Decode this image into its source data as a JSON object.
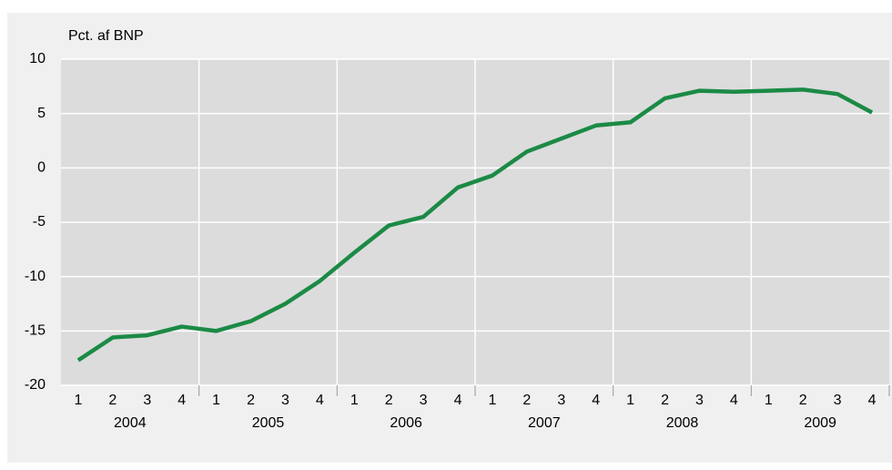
{
  "chart_data": {
    "type": "line",
    "y_label": "Pct. af BNP",
    "categories": [
      "1",
      "2",
      "3",
      "4",
      "1",
      "2",
      "3",
      "4",
      "1",
      "2",
      "3",
      "4",
      "1",
      "2",
      "3",
      "4",
      "1",
      "2",
      "3",
      "4",
      "1",
      "2",
      "3",
      "4"
    ],
    "years": [
      "2004",
      "2005",
      "2006",
      "2007",
      "2008",
      "2009"
    ],
    "series": [
      {
        "name": "Pct. af BNP",
        "color": "#1b8a45",
        "values": [
          -17.7,
          -15.6,
          -15.4,
          -14.6,
          -15.0,
          -14.1,
          -12.5,
          -10.4,
          -7.8,
          -5.3,
          -4.5,
          -1.8,
          -0.7,
          1.5,
          2.7,
          3.9,
          4.2,
          6.4,
          7.1,
          7.0,
          7.1,
          7.2,
          6.8,
          5.1
        ]
      }
    ],
    "ylim": [
      -20,
      10
    ],
    "yticks": [
      -20,
      -15,
      -10,
      -5,
      0,
      5,
      10
    ],
    "grid": true
  }
}
